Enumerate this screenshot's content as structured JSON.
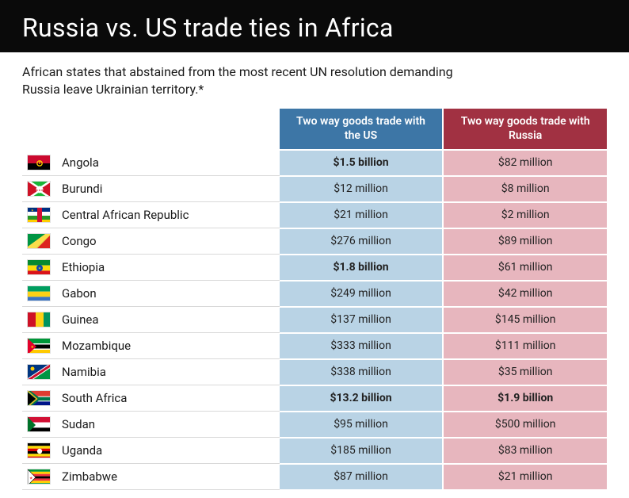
{
  "header": {
    "title": "Russia vs. US trade ties in Africa",
    "subtitle": "African states that abstained from the most recent UN resolution demanding Russia leave Ukrainian territory.*"
  },
  "columns": {
    "us": "Two way goods trade with the US",
    "ru": "Two way goods trade with Russia"
  },
  "colors": {
    "header_bg": "#0a0a0a",
    "us_header": "#3d76a6",
    "ru_header": "#a13142",
    "us_cell": "#b9d3e5",
    "ru_cell": "#e7b6be",
    "row_divider": "#d9d9d9",
    "text": "#1a1a1a"
  },
  "rows": [
    {
      "country": "Angola",
      "us": "$1.5 billion",
      "ru": "$82 million",
      "us_bold": true,
      "ru_bold": false,
      "flag_key": "ao"
    },
    {
      "country": "Burundi",
      "us": "$12 million",
      "ru": "$8 million",
      "us_bold": false,
      "ru_bold": false,
      "flag_key": "bi"
    },
    {
      "country": "Central African Republic",
      "us": "$21 million",
      "ru": "$2 million",
      "us_bold": false,
      "ru_bold": false,
      "flag_key": "cf"
    },
    {
      "country": "Congo",
      "us": "$276 million",
      "ru": "$89 million",
      "us_bold": false,
      "ru_bold": false,
      "flag_key": "cg"
    },
    {
      "country": "Ethiopia",
      "us": "$1.8 billion",
      "ru": "$61 million",
      "us_bold": true,
      "ru_bold": false,
      "flag_key": "et"
    },
    {
      "country": "Gabon",
      "us": "$249 million",
      "ru": "$42 million",
      "us_bold": false,
      "ru_bold": false,
      "flag_key": "ga"
    },
    {
      "country": "Guinea",
      "us": "$137 million",
      "ru": "$145 million",
      "us_bold": false,
      "ru_bold": false,
      "flag_key": "gn"
    },
    {
      "country": "Mozambique",
      "us": "$333 million",
      "ru": "$111 million",
      "us_bold": false,
      "ru_bold": false,
      "flag_key": "mz"
    },
    {
      "country": "Namibia",
      "us": "$338 million",
      "ru": "$35 million",
      "us_bold": false,
      "ru_bold": false,
      "flag_key": "na"
    },
    {
      "country": "South Africa",
      "us": "$13.2 billion",
      "ru": "$1.9 billion",
      "us_bold": true,
      "ru_bold": true,
      "flag_key": "za"
    },
    {
      "country": "Sudan",
      "us": "$95 million",
      "ru": "$500 million",
      "us_bold": false,
      "ru_bold": false,
      "flag_key": "sd"
    },
    {
      "country": "Uganda",
      "us": "$185 million",
      "ru": "$83 million",
      "us_bold": false,
      "ru_bold": false,
      "flag_key": "ug"
    },
    {
      "country": "Zimbabwe",
      "us": "$87 million",
      "ru": "$21 million",
      "us_bold": false,
      "ru_bold": false,
      "flag_key": "zw"
    }
  ]
}
